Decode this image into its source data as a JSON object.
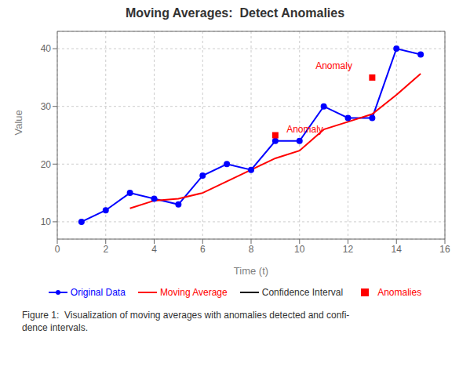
{
  "chart_data": {
    "type": "line",
    "title": "Moving Averages:  Detect Anomalies",
    "x_label": "Time (t)",
    "y_label": "Value",
    "xlim": [
      0,
      16
    ],
    "ylim": [
      7,
      43
    ],
    "xticks": [
      0,
      2,
      4,
      6,
      8,
      10,
      12,
      14,
      16
    ],
    "yticks": [
      10,
      20,
      30,
      40
    ],
    "grid": true,
    "series": [
      {
        "name": "Original Data",
        "type": "line",
        "color": "#0000ff",
        "marker": "circle",
        "x": [
          1,
          2,
          3,
          4,
          5,
          6,
          7,
          8,
          9,
          10,
          11,
          12,
          13,
          14,
          15
        ],
        "values": [
          10,
          12,
          15,
          14,
          13,
          18,
          20,
          19,
          24,
          24,
          30,
          28,
          28,
          40,
          39
        ]
      },
      {
        "name": "Moving Average",
        "type": "line",
        "color": "#ff0000",
        "marker": "none",
        "x": [
          3,
          4,
          5,
          6,
          7,
          8,
          9,
          10,
          11,
          12,
          13,
          14,
          15
        ],
        "values": [
          12.33,
          13.67,
          14.0,
          15.0,
          17.0,
          19.0,
          21.0,
          22.33,
          26.0,
          27.33,
          28.67,
          32.0,
          35.67
        ]
      },
      {
        "name": "Confidence Interval",
        "type": "line",
        "color": "#000000",
        "marker": "none",
        "x": [],
        "values": []
      },
      {
        "name": "Anomalies",
        "type": "scatter",
        "color": "#ff0000",
        "marker": "square",
        "x": [
          9,
          13
        ],
        "values": [
          25,
          35
        ]
      }
    ],
    "annotations": [
      {
        "text": "Anomaly",
        "x": 9.3,
        "y": 26,
        "color": "#ff0000"
      },
      {
        "text": "Anomaly",
        "x": 10.5,
        "y": 37,
        "color": "#ff0000"
      }
    ],
    "caption": "Figure 1:  Visualization of moving averages with anomalies detected and confi-\ndence intervals."
  }
}
